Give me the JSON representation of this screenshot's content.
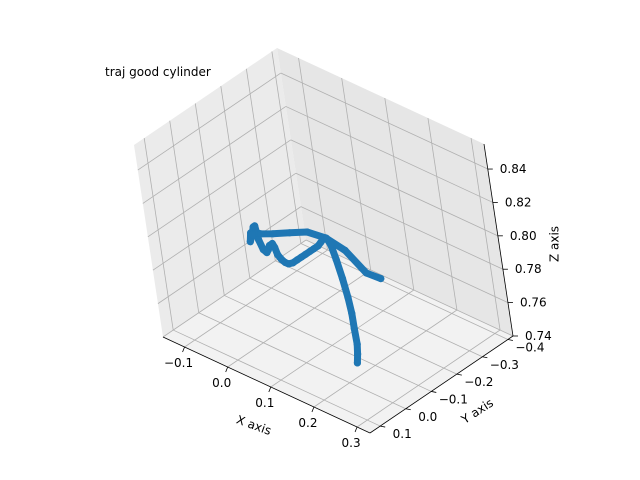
{
  "chart_data": {
    "type": "line",
    "title": "traj good cylinder",
    "xlabel": "X axis",
    "ylabel": "Y axis",
    "zlabel": "Z axis",
    "x_ticks": [
      "−0.1",
      "0.0",
      "0.1",
      "0.2",
      "0.3"
    ],
    "y_ticks": [
      "−0.4",
      "−0.3",
      "−0.2",
      "−0.1",
      "0.0",
      "0.1"
    ],
    "z_ticks": [
      "0.74",
      "0.76",
      "0.78",
      "0.80",
      "0.82",
      "0.84"
    ],
    "xlim": [
      -0.15,
      0.33
    ],
    "ylim": [
      -0.42,
      0.14
    ],
    "zlim": [
      0.74,
      0.855
    ],
    "grid": true,
    "series_color": "#1f77b4",
    "series": [
      {
        "x": [
          0.05,
          0.03,
          0.0,
          -0.03,
          -0.06,
          -0.09,
          -0.115,
          -0.12,
          -0.115,
          -0.11,
          -0.1,
          -0.085,
          -0.07,
          -0.055,
          -0.04,
          -0.025,
          -0.01,
          0.005,
          0.02,
          0.035,
          0.05,
          0.065,
          0.08,
          0.095,
          0.11,
          0.125,
          0.14,
          0.155,
          0.17,
          0.185,
          0.2,
          0.215,
          0.23,
          0.245,
          0.26,
          0.275,
          0.29,
          0.3,
          0.305,
          0.305,
          0.302,
          0.3,
          0.295,
          0.29
        ],
        "y": [
          -0.38,
          -0.36,
          -0.34,
          -0.32,
          -0.3,
          -0.28,
          -0.255,
          -0.22,
          -0.19,
          -0.17,
          -0.15,
          -0.14,
          -0.125,
          -0.11,
          -0.095,
          -0.085,
          -0.075,
          -0.06,
          -0.045,
          -0.035,
          -0.02,
          -0.005,
          0.005,
          0.015,
          0.025,
          0.03,
          0.035,
          0.04,
          0.045,
          0.05,
          0.055,
          0.06,
          0.07,
          0.08,
          0.09,
          0.1,
          0.11,
          0.112,
          0.11,
          0.105,
          0.1,
          0.095,
          0.092,
          0.09
        ],
        "z": [
          0.745,
          0.748,
          0.76,
          0.766,
          0.768,
          0.766,
          0.765,
          0.768,
          0.773,
          0.775,
          0.773,
          0.78,
          0.788,
          0.792,
          0.787,
          0.784,
          0.785,
          0.79,
          0.796,
          0.8,
          0.801,
          0.8,
          0.8,
          0.801,
          0.803,
          0.806,
          0.81,
          0.814,
          0.818,
          0.822,
          0.826,
          0.83,
          0.835,
          0.84,
          0.843,
          0.842,
          0.836,
          0.826,
          0.815,
          0.805,
          0.795,
          0.785,
          0.778,
          0.772
        ]
      }
    ]
  }
}
